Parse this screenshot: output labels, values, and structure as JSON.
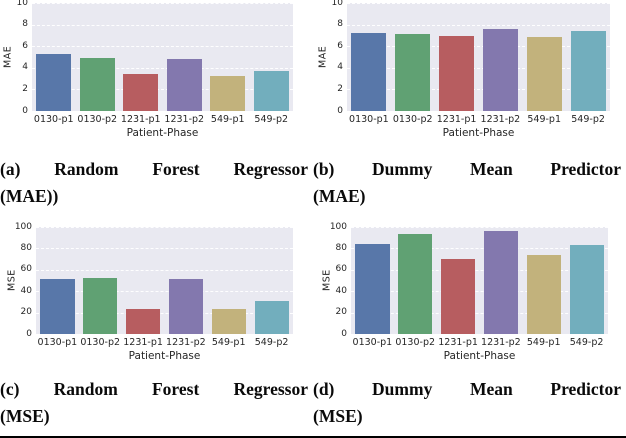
{
  "chart_data": [
    {
      "id": "a",
      "type": "bar",
      "title": "(a) Random Forest Regressor (MAE))",
      "caption_lines": [
        "(a) Random Forest Regressor",
        "(MAE))"
      ],
      "ylabel": "MAE",
      "xlabel": "Patient-Phase",
      "ylim": [
        0,
        10
      ],
      "yticks": [
        0,
        2,
        4,
        6,
        8,
        10
      ],
      "categories": [
        "0130-p1",
        "0130-p2",
        "1231-p1",
        "1231-p2",
        "549-p1",
        "549-p2"
      ],
      "values": [
        5.3,
        4.95,
        3.4,
        4.85,
        3.25,
        3.7
      ],
      "grid": true,
      "legend": false
    },
    {
      "id": "b",
      "type": "bar",
      "title": "(b) Dummy Mean Predictor (MAE)",
      "caption_lines": [
        "(b) Dummy Mean Predictor",
        "(MAE)"
      ],
      "ylabel": "MAE",
      "xlabel": "Patient-Phase",
      "ylim": [
        0,
        10
      ],
      "yticks": [
        0,
        2,
        4,
        6,
        8,
        10
      ],
      "categories": [
        "0130-p1",
        "0130-p2",
        "1231-p1",
        "1231-p2",
        "549-p1",
        "549-p2"
      ],
      "values": [
        7.2,
        7.1,
        6.9,
        7.55,
        6.85,
        7.45
      ],
      "grid": true,
      "legend": false
    },
    {
      "id": "c",
      "type": "bar",
      "title": "(c) Random Forest Regressor (MSE)",
      "caption_lines": [
        "(c) Random Forest Regressor",
        "(MSE)"
      ],
      "ylabel": "MSE",
      "xlabel": "Patient-Phase",
      "ylim": [
        0,
        100
      ],
      "yticks": [
        0,
        20,
        40,
        60,
        80,
        100
      ],
      "categories": [
        "0130-p1",
        "0130-p2",
        "1231-p1",
        "1231-p2",
        "549-p1",
        "549-p2"
      ],
      "values": [
        51,
        52.5,
        23.5,
        51,
        23,
        30.5
      ],
      "grid": true,
      "legend": false
    },
    {
      "id": "d",
      "type": "bar",
      "title": "(d) Dummy Mean Predictor (MSE)",
      "caption_lines": [
        "(d) Dummy Mean Predictor",
        "(MSE)"
      ],
      "ylabel": "MSE",
      "xlabel": "Patient-Phase",
      "ylim": [
        0,
        100
      ],
      "yticks": [
        0,
        20,
        40,
        60,
        80,
        100
      ],
      "categories": [
        "0130-p1",
        "0130-p2",
        "1231-p1",
        "1231-p2",
        "549-p1",
        "549-p2"
      ],
      "values": [
        84,
        93,
        70,
        96,
        74,
        83.5
      ],
      "grid": true,
      "legend": false
    }
  ],
  "style": {
    "bar_colors": [
      "#5877a9",
      "#60a173",
      "#b75d60",
      "#8378ae",
      "#c2b27c",
      "#72aebd"
    ],
    "plot_background": "#e9e9f1",
    "grid_color": "#ffffff",
    "tick_color": "#262626"
  }
}
